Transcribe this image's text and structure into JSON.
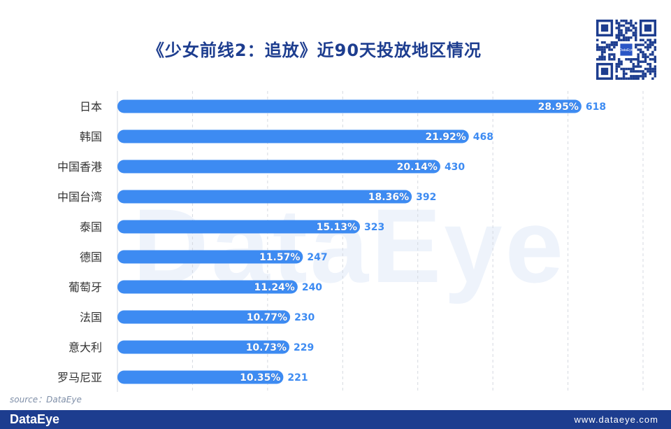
{
  "colors": {
    "bar": "#3d8bf2",
    "title": "#1d3d8f",
    "footer": "#1d3d8f",
    "grid": "#d5d9e0",
    "text": "#333333"
  },
  "watermark": "DataEye",
  "qr_label": "DataEye",
  "source": "source：DataEye",
  "footer": {
    "brand": "DataEye",
    "site": "www.dataeye.com"
  },
  "chart_data": {
    "type": "bar",
    "orientation": "horizontal",
    "title": "《少女前线2：追放》近90天投放地区情况",
    "categories": [
      "日本",
      "韩国",
      "中国香港",
      "中国台湾",
      "泰国",
      "德国",
      "葡萄牙",
      "法国",
      "意大利",
      "罗马尼亚"
    ],
    "values": [
      618,
      468,
      430,
      392,
      323,
      247,
      240,
      230,
      229,
      221
    ],
    "percent_labels": [
      "28.95%",
      "21.92%",
      "20.14%",
      "18.36%",
      "15.13%",
      "11.57%",
      "11.24%",
      "10.77%",
      "10.73%",
      "10.35%"
    ],
    "xlim": [
      0,
      700
    ],
    "grid": true,
    "legend": "none"
  }
}
